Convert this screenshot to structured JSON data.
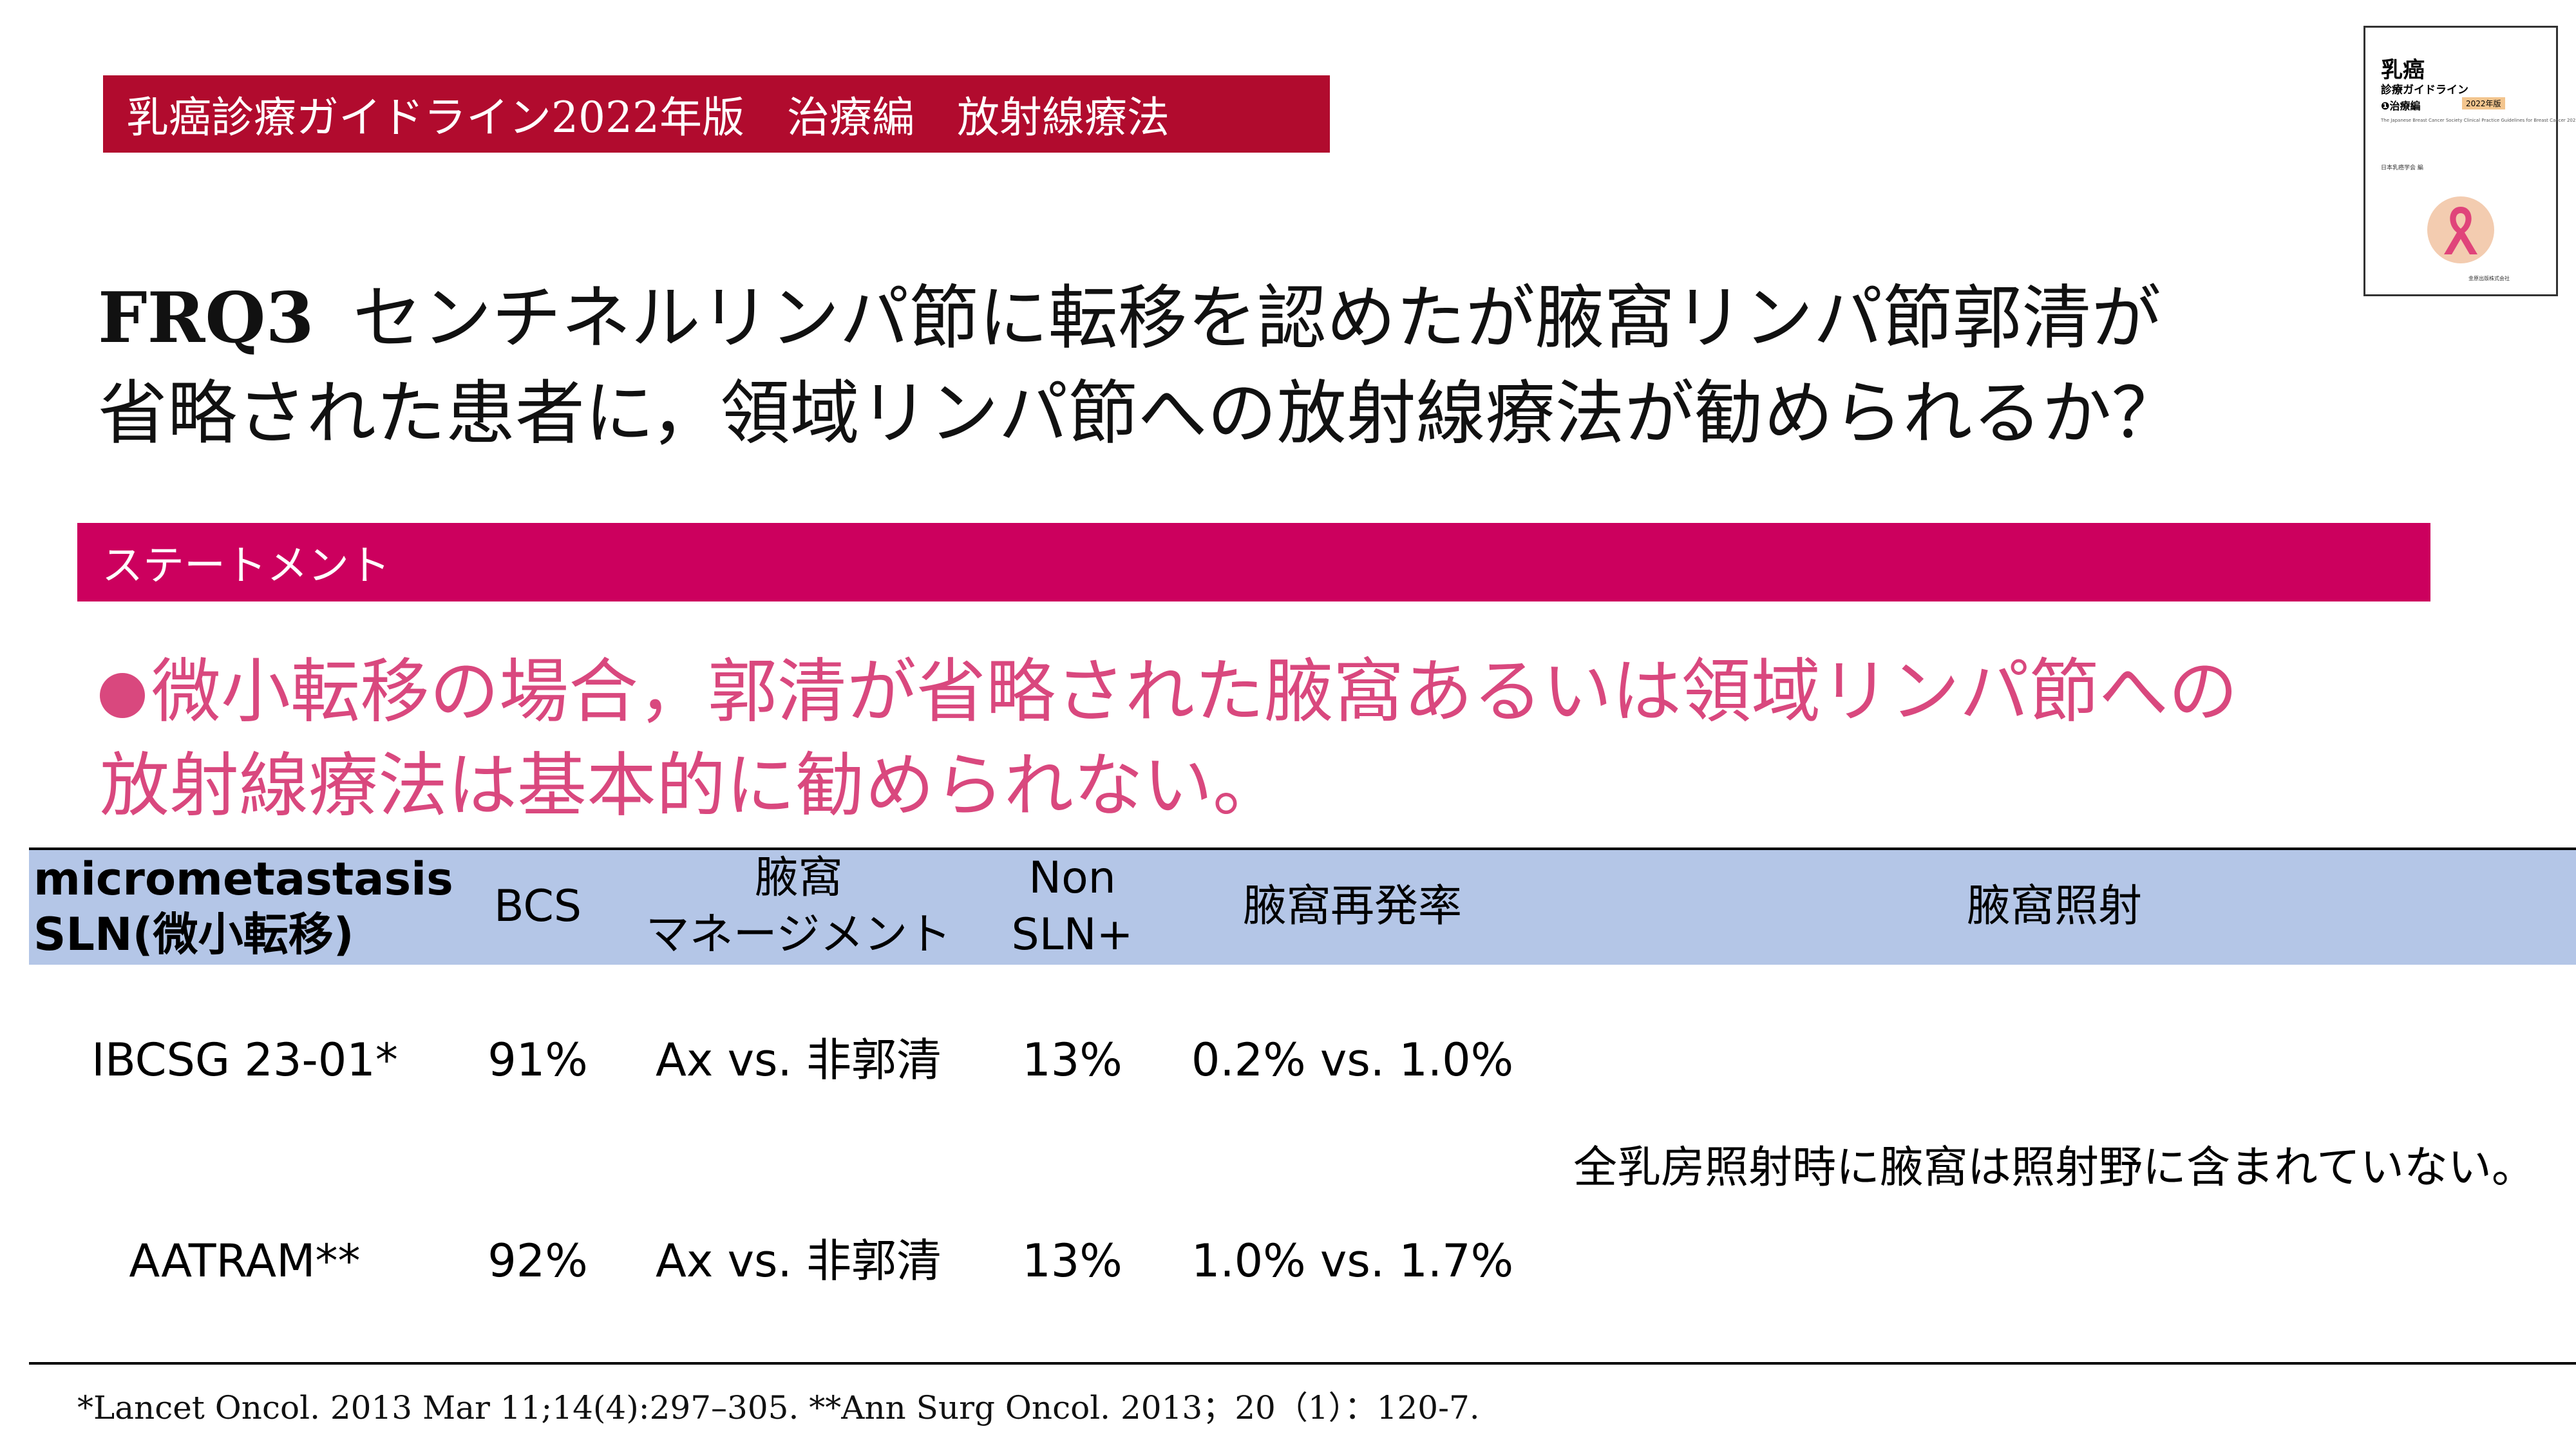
{
  "header": {
    "badge": "乳癌診療ガイドライン2022年版　治療編　放射線療法"
  },
  "book_cover": {
    "title": "乳癌",
    "subtitle": "診療ガイドライン",
    "volume": "❶治療編",
    "edition": "2022年版",
    "english": "The Japanese Breast Cancer Society Clinical Practice Guidelines for Breast Cancer 2022",
    "publisher": "日本乳癌学会 編",
    "footer": "金原出版株式会社",
    "colors": {
      "ribbon": "#e0447a",
      "circle": "#f3ccb0"
    }
  },
  "question": {
    "label": "FRQ3",
    "line1": "センチネルリンパ節に転移を認めたが腋窩リンパ節郭清が",
    "line2": "省略された患者に，領域リンパ節への放射線療法が勧められるか？"
  },
  "statement_bar": {
    "label": "ステートメント"
  },
  "statement": {
    "line1": "微小転移の場合，郭清が省略された腋窩あるいは領域リンパ節への",
    "line2": "放射線療法は基本的に勧められない。"
  },
  "table": {
    "headers": {
      "study_line1": "micrometastasis",
      "study_line2": "SLN(微小転移)",
      "bcs": "BCS",
      "axilla_line1": "腋窩",
      "axilla_line2": "マネージメント",
      "nonsln_line1": "Non",
      "nonsln_line2": "SLN+",
      "recurrence": "腋窩再発率",
      "irradiation": "腋窩照射"
    },
    "rows": [
      {
        "study": "IBCSG 23-01*",
        "bcs": "91%",
        "axilla": "Ax vs. 非郭清",
        "nonsln": "13%",
        "recurrence": "0.2% vs. 1.0%"
      },
      {
        "study": "AATRAM**",
        "bcs": "92%",
        "axilla": "Ax vs. 非郭清",
        "nonsln": "13%",
        "recurrence": "1.0% vs. 1.7%"
      }
    ],
    "irradiation_note": "全乳房照射時に腋窩は照射野に含まれていない。"
  },
  "references": "*Lancet Oncol. 2013 Mar 11;14(4):297–305. **Ann Surg Oncol. 2013；20（1）：120-7.",
  "colors": {
    "header_badge": "#b10b2e",
    "statement_bar": "#cc005e",
    "statement_text": "#d9487e",
    "table_header": "#b4c6e7"
  }
}
